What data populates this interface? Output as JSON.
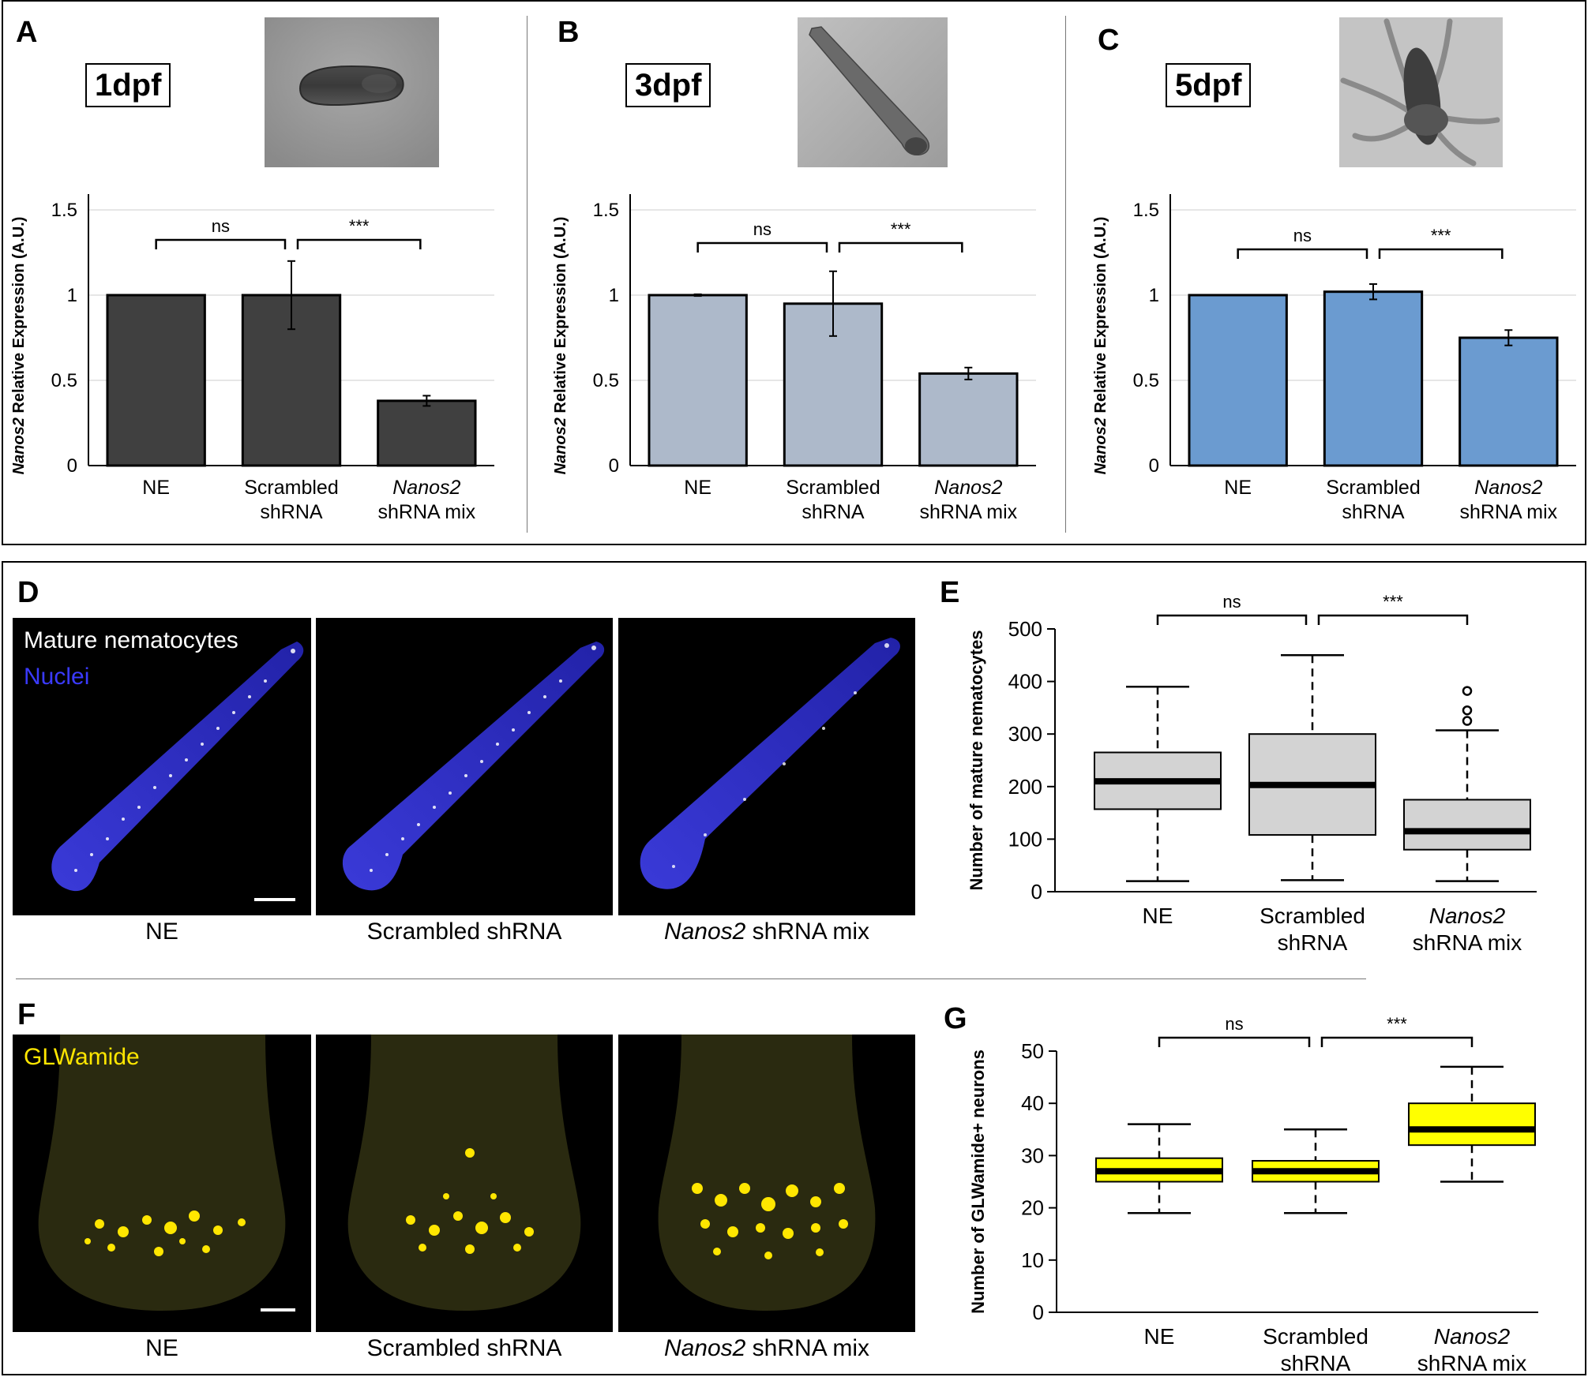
{
  "panels_top": [
    {
      "letter": "A",
      "stage": "1dpf",
      "color": "#404040"
    },
    {
      "letter": "B",
      "stage": "3dpf",
      "color": "#adb9ca"
    },
    {
      "letter": "C",
      "stage": "5dpf",
      "color": "#6b9bd0"
    }
  ],
  "letters": {
    "D": "D",
    "E": "E",
    "F": "F",
    "G": "G"
  },
  "sig": {
    "ns": "ns",
    "stars": "***"
  },
  "image_labels": {
    "ne": "NE",
    "scrambled": "Scrambled shRNA",
    "nanos_italic": "Nanos2",
    "nanos_rest": " shRNA mix"
  },
  "overlays": {
    "mature": "Mature nematocytes",
    "nuclei": "Nuclei",
    "glw": "GLWamide"
  },
  "chart_data": [
    {
      "type": "bar",
      "panel": "A",
      "ylabel_italic": "Nanos2",
      "ylabel_rest": " Relative Expression (A.U.)",
      "categories": [
        [
          "NE"
        ],
        [
          "Scrambled",
          "shRNA"
        ],
        [
          "Nanos2",
          "shRNA mix"
        ]
      ],
      "values": [
        1.0,
        1.0,
        0.38
      ],
      "errors": [
        0.0,
        0.2,
        0.03
      ],
      "yticks": [
        "0",
        "0.5",
        "1",
        "1.5"
      ],
      "ylim": [
        0,
        1.5
      ],
      "bar_color": "#404040"
    },
    {
      "type": "bar",
      "panel": "B",
      "ylabel_italic": "Nanos2",
      "ylabel_rest": " Relative Expression (A.U.)",
      "categories": [
        [
          "NE"
        ],
        [
          "Scrambled",
          "shRNA"
        ],
        [
          "Nanos2",
          "shRNA mix"
        ]
      ],
      "values": [
        1.0,
        0.95,
        0.54
      ],
      "errors": [
        0.005,
        0.19,
        0.035
      ],
      "yticks": [
        "0",
        "0.5",
        "1",
        "1.5"
      ],
      "ylim": [
        0,
        1.5
      ],
      "bar_color": "#adb9ca"
    },
    {
      "type": "bar",
      "panel": "C",
      "ylabel_italic": "Nanos2",
      "ylabel_rest": " Relative Expression (A.U.)",
      "categories": [
        [
          "NE"
        ],
        [
          "Scrambled",
          "shRNA"
        ],
        [
          "Nanos2",
          "shRNA mix"
        ]
      ],
      "values": [
        1.0,
        1.02,
        0.75
      ],
      "errors": [
        0.0,
        0.045,
        0.045
      ],
      "yticks": [
        "0",
        "0.5",
        "1",
        "1.5"
      ],
      "ylim": [
        0,
        1.5
      ],
      "bar_color": "#6b9bd0"
    },
    {
      "type": "box",
      "panel": "E",
      "ylabel": "Number of mature nematocytes",
      "categories": [
        [
          "NE"
        ],
        [
          "Scrambled",
          "shRNA"
        ],
        [
          "Nanos2",
          "shRNA mix"
        ]
      ],
      "boxes": [
        {
          "min": 20,
          "q1": 157,
          "median": 210,
          "q3": 265,
          "max": 390,
          "outliers": []
        },
        {
          "min": 22,
          "q1": 108,
          "median": 203,
          "q3": 300,
          "max": 450,
          "outliers": []
        },
        {
          "min": 20,
          "q1": 80,
          "median": 115,
          "q3": 175,
          "max": 307,
          "outliers": [
            325,
            345,
            382
          ]
        }
      ],
      "yticks": [
        "0",
        "100",
        "200",
        "300",
        "400",
        "500"
      ],
      "ylim": [
        0,
        500
      ],
      "box_color": "#d3d3d3"
    },
    {
      "type": "box",
      "panel": "G",
      "ylabel": "Number of GLWamide+ neurons",
      "categories": [
        [
          "NE"
        ],
        [
          "Scrambled",
          "shRNA"
        ],
        [
          "Nanos2",
          "shRNA mix"
        ]
      ],
      "boxes": [
        {
          "min": 19,
          "q1": 25,
          "median": 27,
          "q3": 29.5,
          "max": 36,
          "outliers": []
        },
        {
          "min": 19,
          "q1": 25,
          "median": 27,
          "q3": 29,
          "max": 35,
          "outliers": []
        },
        {
          "min": 25,
          "q1": 32,
          "median": 35,
          "q3": 40,
          "max": 47,
          "outliers": []
        }
      ],
      "yticks": [
        "0",
        "10",
        "20",
        "30",
        "40",
        "50"
      ],
      "ylim": [
        0,
        50
      ],
      "box_color": "#ffff00"
    }
  ]
}
